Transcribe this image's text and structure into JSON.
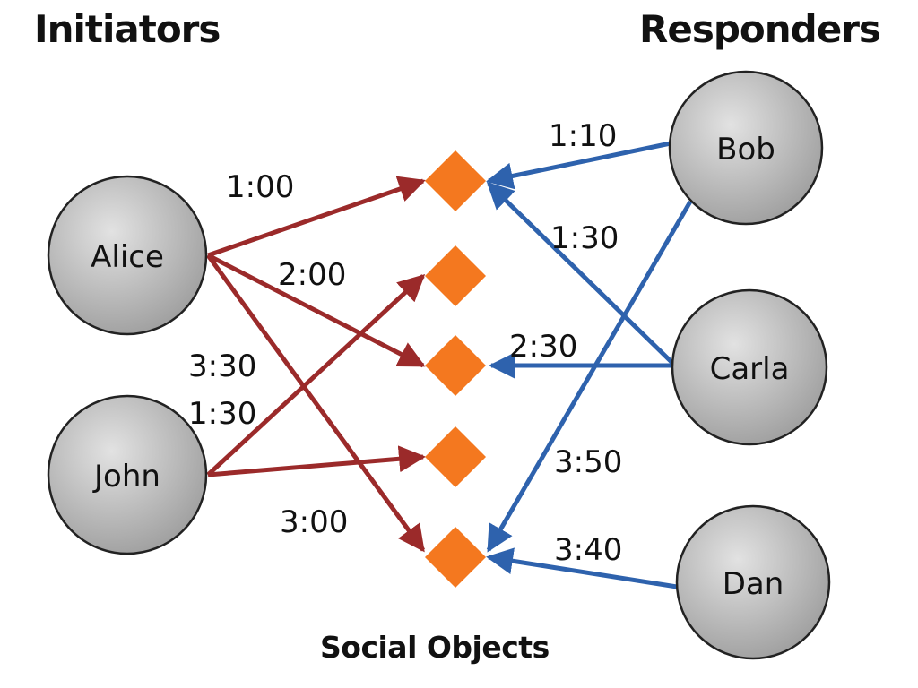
{
  "headings": {
    "initiators": "Initiators",
    "responders": "Responders",
    "social_objects": "Social Objects"
  },
  "colors": {
    "initiator_edge": "#9b2a2a",
    "responder_edge": "#2e62ad",
    "social_object": "#f4781f",
    "node_fill": "#b8b8b8",
    "node_stroke": "#222222"
  },
  "nodes": {
    "alice": "Alice",
    "john": "John",
    "bob": "Bob",
    "carla": "Carla",
    "dan": "Dan"
  },
  "edges": [
    {
      "from": "Alice",
      "to": "Social Object 1",
      "label": "1:00",
      "group": "initiator"
    },
    {
      "from": "Alice",
      "to": "Social Object 3",
      "label": "2:00",
      "group": "initiator"
    },
    {
      "from": "Alice",
      "to": "Social Object 5",
      "label": "3:00",
      "group": "initiator"
    },
    {
      "from": "John",
      "to": "Social Object 2",
      "label": "3:30",
      "group": "initiator"
    },
    {
      "from": "John",
      "to": "Social Object 4",
      "label": "1:30",
      "group": "initiator"
    },
    {
      "from": "Bob",
      "to": "Social Object 1",
      "label": "1:10",
      "group": "responder"
    },
    {
      "from": "Bob",
      "to": "Social Object 5",
      "label": "3:50",
      "group": "responder"
    },
    {
      "from": "Carla",
      "to": "Social Object 1",
      "label": "1:30",
      "group": "responder"
    },
    {
      "from": "Carla",
      "to": "Social Object 3",
      "label": "2:30",
      "group": "responder"
    },
    {
      "from": "Dan",
      "to": "Social Object 5",
      "label": "3:40",
      "group": "responder"
    }
  ]
}
